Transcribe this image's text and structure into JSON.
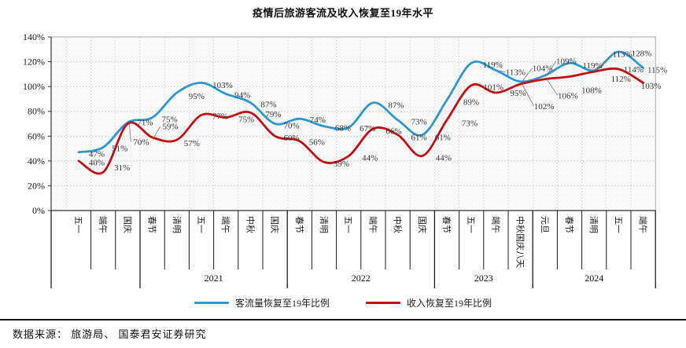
{
  "chart_data": {
    "type": "line",
    "title": "疫情后旅游客流及收入恢复至19年水平",
    "ylim": [
      0,
      140
    ],
    "ytick_step": 20,
    "ytick_format": "percent",
    "grid": true,
    "plot_hatch": true,
    "smooth_lines": true,
    "legend_position": "bottom",
    "categories": [
      "五一",
      "端午",
      "国庆",
      "春节",
      "清明",
      "五一",
      "端午",
      "中秋",
      "国庆",
      "春节",
      "清明",
      "五一",
      "端午",
      "中秋",
      "国庆",
      "春节",
      "五一",
      "端午",
      "中秋国庆八天",
      "元旦",
      "春节",
      "清明",
      "五一",
      "端午"
    ],
    "year_groups": [
      {
        "year": "",
        "count": 3
      },
      {
        "year": "2021",
        "count": 6
      },
      {
        "year": "2022",
        "count": 6
      },
      {
        "year": "2023",
        "count": 4
      },
      {
        "year": "2024",
        "count": 5
      }
    ],
    "series": [
      {
        "name": "客流量恢复至19年比例",
        "color": "#2b97d3",
        "values": [
          47,
          51,
          71,
          75,
          95,
          103,
          94,
          87,
          70,
          74,
          68,
          67,
          87,
          73,
          61,
          89,
          119,
          113,
          104,
          109,
          119,
          113,
          128,
          115
        ],
        "label_offsets": [
          [
            23,
            2,
            0
          ],
          [
            21,
            1,
            0
          ],
          [
            22,
            0,
            0
          ],
          [
            22,
            2,
            0
          ],
          [
            25,
            4,
            0
          ],
          [
            27,
            3,
            0
          ],
          [
            21,
            1,
            0
          ],
          [
            23,
            2,
            0
          ],
          [
            21,
            2,
            0
          ],
          [
            23,
            1,
            0
          ],
          [
            24,
            2,
            0
          ],
          [
            24,
            1,
            0
          ],
          [
            29,
            3,
            0
          ],
          [
            27,
            2,
            0
          ],
          [
            26,
            3,
            0
          ],
          [
            31,
            2,
            0
          ],
          [
            27,
            2,
            0
          ],
          [
            25,
            2,
            1
          ],
          [
            28,
            -17,
            1
          ],
          [
            27,
            -18,
            1
          ],
          [
            29,
            3,
            0
          ],
          [
            36,
            -21,
            1
          ],
          [
            29,
            2,
            0
          ],
          [
            18,
            2,
            0
          ]
        ]
      },
      {
        "name": "收入恢复至19年比例",
        "color": "#c31014",
        "values": [
          40,
          31,
          70,
          59,
          57,
          77,
          75,
          79,
          60,
          56,
          39,
          44,
          66,
          61,
          44,
          73,
          101,
          95,
          102,
          106,
          108,
          112,
          114,
          103
        ],
        "label_offsets": [
          [
            23,
            2,
            0
          ],
          [
            24,
            -6,
            0
          ],
          [
            17,
            23,
            1
          ],
          [
            23,
            -14,
            1
          ],
          [
            19,
            4,
            0
          ],
          [
            24,
            1,
            0
          ],
          [
            26,
            2,
            0
          ],
          [
            29,
            2,
            0
          ],
          [
            21,
            2,
            0
          ],
          [
            22,
            1,
            0
          ],
          [
            22,
            2,
            0
          ],
          [
            27,
            2,
            0
          ],
          [
            26,
            3,
            0
          ],
          [
            27,
            3,
            0
          ],
          [
            27,
            2,
            0
          ],
          [
            29,
            4,
            0
          ],
          [
            28,
            2,
            0
          ],
          [
            28,
            0,
            0
          ],
          [
            30,
            28,
            1
          ],
          [
            29,
            21,
            1
          ],
          [
            28,
            17,
            0
          ],
          [
            34,
            9,
            0
          ],
          [
            19,
            0,
            0
          ],
          [
            10,
            4,
            0
          ]
        ]
      }
    ]
  },
  "source": "数据来源： 旅游局、 国泰君安证券研究"
}
